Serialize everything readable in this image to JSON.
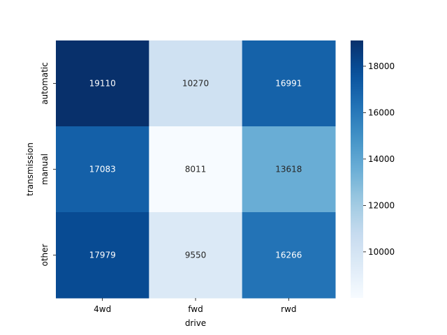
{
  "chart_data": {
    "type": "heatmap",
    "title": "",
    "xlabel": "drive",
    "ylabel": "transmission",
    "x_categories": [
      "4wd",
      "fwd",
      "rwd"
    ],
    "y_categories": [
      "automatic",
      "manual",
      "other"
    ],
    "values": [
      [
        19110,
        10270,
        16991
      ],
      [
        17083,
        8011,
        13618
      ],
      [
        17979,
        9550,
        16266
      ]
    ],
    "colormap": "Blues",
    "color_range": [
      8011,
      19110
    ],
    "colorbar_ticks": [
      10000,
      12000,
      14000,
      16000,
      18000
    ],
    "annotations": true,
    "grid": false
  }
}
